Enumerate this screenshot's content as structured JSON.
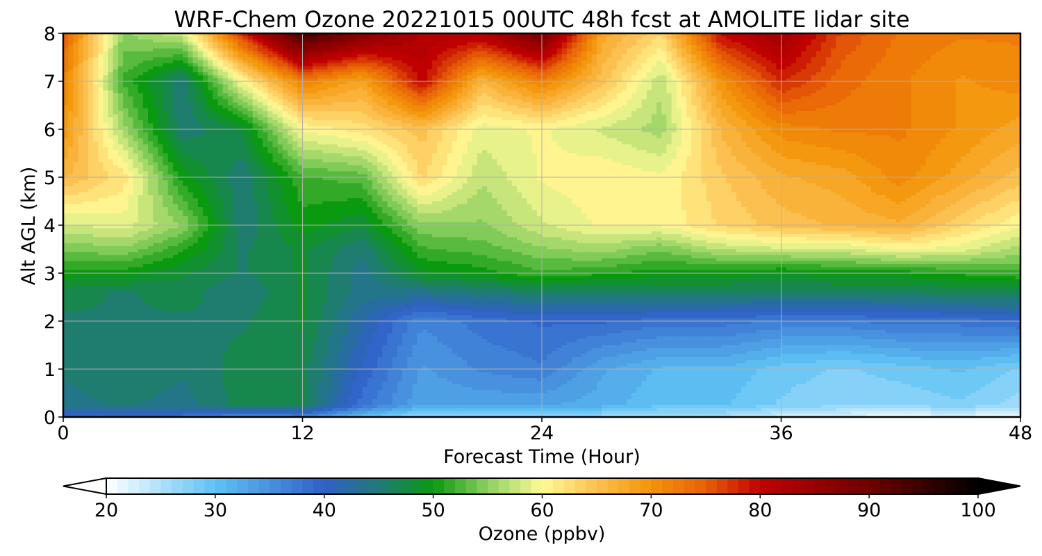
{
  "chart_data": {
    "type": "heatmap",
    "title": "WRF-Chem Ozone  20221015 00UTC 48h fcst at AMOLITE lidar site",
    "xlabel": "Forecast Time (Hour)",
    "ylabel": "Alt AGL (km)",
    "xlim": [
      0,
      48
    ],
    "ylim": [
      0,
      8
    ],
    "x_ticks": [
      "0",
      "12",
      "24",
      "36",
      "48"
    ],
    "y_ticks": [
      "0",
      "1",
      "2",
      "3",
      "4",
      "5",
      "6",
      "7",
      "8"
    ],
    "grid": true,
    "colorbar": {
      "label": "Ozone  (ppbv)",
      "range": [
        20,
        100
      ],
      "ticks": [
        "20",
        "30",
        "40",
        "50",
        "60",
        "70",
        "80",
        "90",
        "100"
      ],
      "extend": "both",
      "stops": [
        {
          "v": 20,
          "color": "#ffffff"
        },
        {
          "v": 30,
          "color": "#5ec2f5"
        },
        {
          "v": 40,
          "color": "#3060c8"
        },
        {
          "v": 45,
          "color": "#207a78"
        },
        {
          "v": 50,
          "color": "#0a9a10"
        },
        {
          "v": 55,
          "color": "#8ed060"
        },
        {
          "v": 60,
          "color": "#fffa96"
        },
        {
          "v": 65,
          "color": "#fcc050"
        },
        {
          "v": 70,
          "color": "#f39408"
        },
        {
          "v": 75,
          "color": "#e86008"
        },
        {
          "v": 80,
          "color": "#c00000"
        },
        {
          "v": 90,
          "color": "#700000"
        },
        {
          "v": 100,
          "color": "#000000"
        }
      ]
    },
    "x_hours": [
      0,
      3,
      6,
      9,
      12,
      15,
      18,
      21,
      24,
      27,
      30,
      33,
      36,
      39,
      42,
      45,
      48
    ],
    "y_km": [
      0,
      0.25,
      1,
      2,
      2.6,
      3,
      3.5,
      4,
      5,
      6,
      7,
      8
    ],
    "z_ppbv": [
      [
        38,
        38,
        38,
        35,
        36,
        30,
        26,
        26,
        26,
        26,
        25,
        25,
        23,
        22,
        21,
        22,
        20
      ],
      [
        44,
        45,
        44,
        47,
        47,
        38,
        33,
        33,
        33,
        32,
        30,
        30,
        28,
        27,
        27,
        28,
        26
      ],
      [
        45,
        46,
        45,
        47,
        47,
        40,
        34,
        36,
        37,
        33,
        31,
        31,
        29,
        28,
        29,
        30,
        28
      ],
      [
        46,
        46,
        46,
        46,
        48,
        42,
        36,
        38,
        39,
        39,
        38,
        38,
        37,
        37,
        38,
        38,
        39
      ],
      [
        47,
        46,
        47,
        45,
        48,
        44,
        44,
        45,
        46,
        46,
        46,
        46,
        46,
        46,
        46,
        47,
        47
      ],
      [
        50,
        50,
        48,
        46,
        48,
        44,
        49,
        50,
        52,
        51,
        50,
        50,
        49,
        50,
        50,
        51,
        52
      ],
      [
        54,
        55,
        51,
        46,
        48,
        45,
        52,
        53,
        55,
        56,
        54,
        57,
        58,
        58,
        60,
        59,
        56
      ],
      [
        58,
        59,
        55,
        45,
        50,
        48,
        55,
        55,
        58,
        60,
        60,
        63,
        65,
        66,
        67,
        63,
        60
      ],
      [
        66,
        62,
        50,
        45,
        52,
        53,
        63,
        57,
        60,
        61,
        60,
        64,
        67,
        68,
        71,
        68,
        65
      ],
      [
        70,
        56,
        45,
        48,
        60,
        62,
        65,
        59,
        60,
        58,
        56,
        66,
        71,
        72,
        72,
        70,
        68
      ],
      [
        72,
        52,
        45,
        60,
        72,
        68,
        80,
        66,
        72,
        65,
        57,
        70,
        78,
        74,
        72,
        70,
        71
      ],
      [
        75,
        55,
        58,
        78,
        95,
        88,
        82,
        82,
        90,
        68,
        63,
        80,
        84,
        76,
        73,
        72,
        72
      ]
    ]
  }
}
